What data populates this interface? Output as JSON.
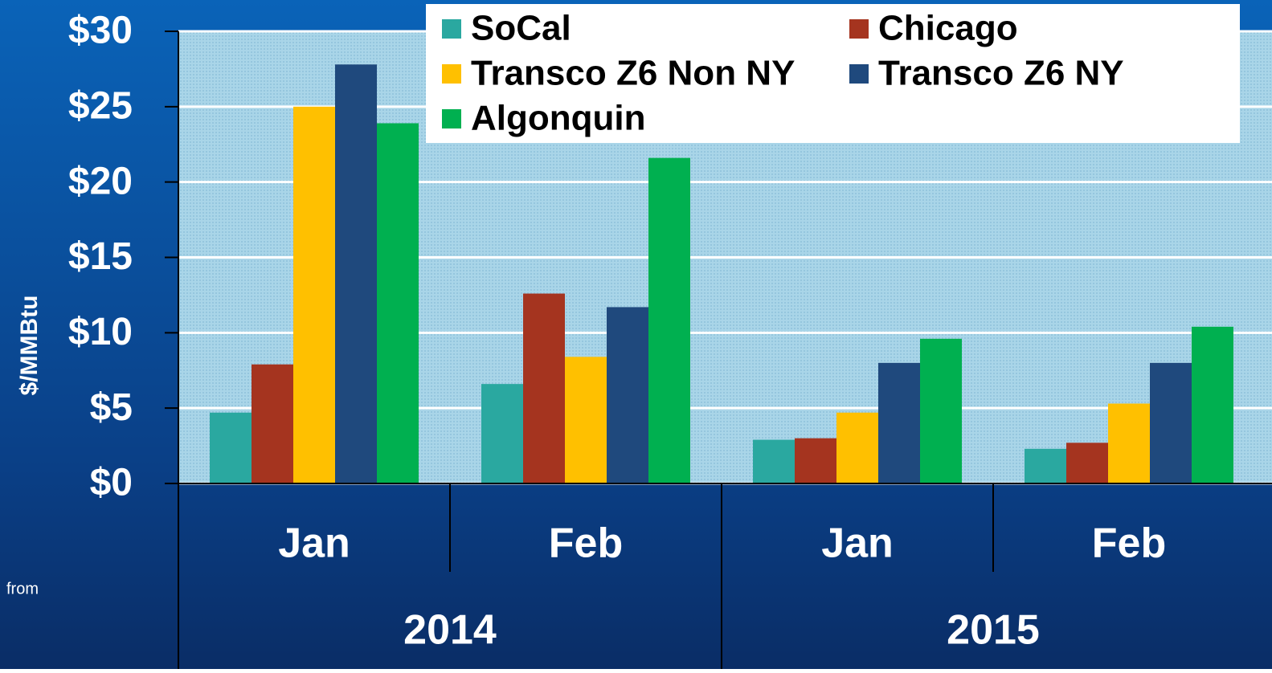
{
  "chart_data": {
    "type": "bar",
    "y_label": "$/MMBtu",
    "annotation": "from",
    "groups": [
      {
        "name": "2014",
        "categories": [
          "Jan",
          "Feb"
        ]
      },
      {
        "name": "2015",
        "categories": [
          "Jan",
          "Feb"
        ]
      }
    ],
    "series": [
      {
        "name": "SoCal",
        "color": "#2aa8a0",
        "values": [
          4.7,
          6.6,
          2.9,
          2.3
        ]
      },
      {
        "name": "Chicago",
        "color": "#a5341f",
        "values": [
          7.9,
          12.6,
          3.0,
          2.7
        ]
      },
      {
        "name": "Transco Z6 Non NY",
        "color": "#ffc000",
        "values": [
          25.0,
          8.4,
          4.7,
          5.3
        ]
      },
      {
        "name": "Transco Z6 NY",
        "color": "#1f497d",
        "values": [
          27.8,
          11.7,
          8.0,
          8.0
        ]
      },
      {
        "name": "Algonquin",
        "color": "#00b050",
        "values": [
          23.9,
          21.6,
          9.6,
          10.4
        ]
      }
    ],
    "ylim": [
      0,
      30
    ],
    "yticks": [
      {
        "value": 0,
        "label": "$0"
      },
      {
        "value": 5,
        "label": "$5"
      },
      {
        "value": 10,
        "label": "$10"
      },
      {
        "value": 15,
        "label": "$15"
      },
      {
        "value": 20,
        "label": "$20"
      },
      {
        "value": 25,
        "label": "$25"
      },
      {
        "value": 30,
        "label": "$30"
      }
    ],
    "grid": true
  }
}
